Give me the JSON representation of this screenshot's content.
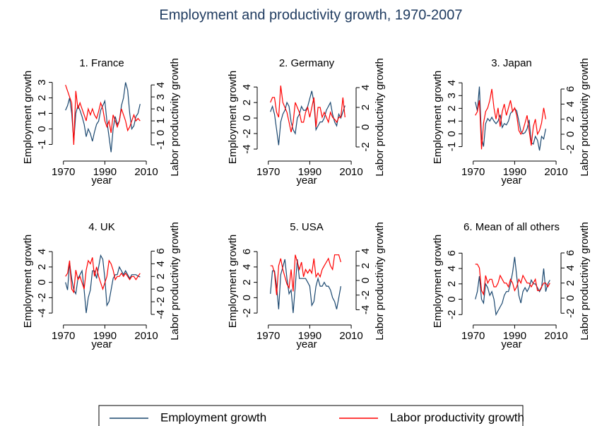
{
  "title": "Employment and productivity growth, 1970-2007",
  "chart_data": [
    {
      "type": "line",
      "title": "1. France",
      "xlabel": "year",
      "ylabel": "Employment growth",
      "y2label": "Labor productivity growth",
      "x": [
        1971,
        1972,
        1973,
        1974,
        1975,
        1976,
        1977,
        1978,
        1979,
        1980,
        1981,
        1982,
        1983,
        1984,
        1985,
        1986,
        1987,
        1988,
        1989,
        1990,
        1991,
        1992,
        1993,
        1994,
        1995,
        1996,
        1997,
        1998,
        1999,
        2000,
        2001,
        2002,
        2003,
        2004,
        2005,
        2006,
        2007
      ],
      "xlim": [
        1966,
        2011
      ],
      "xticks": [
        1970,
        1990,
        2010
      ],
      "ylim": [
        -1.8,
        3.3
      ],
      "yticks": [
        -1,
        0,
        1,
        2,
        3
      ],
      "y2lim": [
        -2.0,
        4.6
      ],
      "y2ticks": [
        -1,
        0,
        1,
        2,
        3,
        4
      ],
      "series": [
        {
          "name": "Employment growth",
          "color": "#1a476f",
          "values": [
            1.2,
            1.5,
            2.0,
            1.0,
            -0.8,
            1.0,
            1.5,
            1.2,
            0.8,
            0.3,
            -0.5,
            0.0,
            -0.3,
            -0.8,
            -0.2,
            0.3,
            0.5,
            1.2,
            1.5,
            1.8,
            0.5,
            -0.5,
            -1.5,
            0.0,
            0.8,
            0.3,
            0.5,
            1.5,
            2.0,
            3.0,
            2.5,
            1.0,
            0.0,
            0.2,
            0.8,
            1.0,
            1.6
          ]
        },
        {
          "name": "Labor productivity growth",
          "color": "#ff0000",
          "axis": "y2",
          "values": [
            4.0,
            3.5,
            3.0,
            2.5,
            -1.0,
            3.5,
            2.0,
            2.5,
            2.0,
            1.5,
            1.0,
            2.0,
            1.5,
            2.0,
            1.5,
            1.2,
            1.8,
            2.5,
            2.0,
            1.0,
            0.5,
            1.0,
            0.0,
            1.5,
            1.0,
            0.5,
            1.0,
            2.0,
            1.5,
            1.0,
            0.2,
            0.5,
            1.0,
            1.5,
            1.0,
            1.2,
            1.0
          ]
        }
      ]
    },
    {
      "type": "line",
      "title": "2. Germany",
      "xlabel": "year",
      "ylabel": "Employment growth",
      "y2label": "Labor productivity growth",
      "x": [
        1971,
        1972,
        1973,
        1974,
        1975,
        1976,
        1977,
        1978,
        1979,
        1980,
        1981,
        1982,
        1983,
        1984,
        1985,
        1986,
        1987,
        1988,
        1989,
        1990,
        1991,
        1992,
        1993,
        1994,
        1995,
        1996,
        1997,
        1998,
        1999,
        2000,
        2001,
        2002,
        2003,
        2004,
        2005,
        2006,
        2007
      ],
      "xlim": [
        1966,
        2011
      ],
      "xticks": [
        1970,
        1990,
        2010
      ],
      "ylim": [
        -5,
        5.2
      ],
      "yticks": [
        -4,
        -2,
        0,
        2,
        4
      ],
      "y2lim": [
        -3,
        5
      ],
      "y2ticks": [
        -2,
        0,
        2,
        4
      ],
      "series": [
        {
          "name": "Employment growth",
          "color": "#1a476f",
          "values": [
            0.8,
            1.5,
            0.5,
            -1.5,
            -3.5,
            -0.5,
            0.5,
            1.0,
            2.0,
            1.5,
            -0.5,
            -1.5,
            -2.0,
            0.0,
            0.5,
            1.5,
            1.0,
            1.0,
            1.5,
            2.5,
            3.5,
            2.0,
            -1.5,
            -1.0,
            -0.5,
            -0.5,
            0.0,
            1.0,
            1.5,
            2.0,
            0.5,
            -0.5,
            -1.0,
            0.5,
            0.0,
            0.8,
            1.6
          ]
        },
        {
          "name": "Labor productivity growth",
          "color": "#ff0000",
          "axis": "y2",
          "values": [
            2.5,
            3.0,
            3.0,
            1.5,
            1.0,
            4.2,
            2.5,
            2.0,
            1.5,
            0.5,
            -0.5,
            0.5,
            2.5,
            2.0,
            1.5,
            0.5,
            0.5,
            1.5,
            2.0,
            1.0,
            2.0,
            3.0,
            0.0,
            2.0,
            2.0,
            1.0,
            1.5,
            1.0,
            0.5,
            1.5,
            1.0,
            0.8,
            0.5,
            1.0,
            1.0,
            3.0,
            1.0
          ]
        }
      ]
    },
    {
      "type": "line",
      "title": "3. Japan",
      "xlabel": "year",
      "ylabel": "Employment growth",
      "y2label": "Labor productivity growth",
      "x": [
        1971,
        1972,
        1973,
        1974,
        1975,
        1976,
        1977,
        1978,
        1979,
        1980,
        1981,
        1982,
        1983,
        1984,
        1985,
        1986,
        1987,
        1988,
        1989,
        1990,
        1991,
        1992,
        1993,
        1994,
        1995,
        1996,
        1997,
        1998,
        1999,
        2000,
        2001,
        2002,
        2003,
        2004,
        2005,
        2006,
        2007
      ],
      "xlim": [
        1966,
        2011
      ],
      "xticks": [
        1970,
        1990,
        2010
      ],
      "ylim": [
        -1.8,
        4.4
      ],
      "yticks": [
        -1,
        0,
        1,
        2,
        3,
        4
      ],
      "y2lim": [
        -3,
        7.5
      ],
      "y2ticks": [
        -2,
        0,
        2,
        4,
        6
      ],
      "series": [
        {
          "name": "Employment growth",
          "color": "#1a476f",
          "values": [
            2.5,
            1.8,
            3.7,
            -0.3,
            -1.0,
            0.8,
            1.2,
            1.0,
            1.3,
            1.0,
            0.8,
            1.0,
            1.5,
            0.5,
            0.8,
            0.7,
            1.0,
            1.6,
            1.8,
            2.0,
            1.8,
            1.0,
            0.2,
            0.0,
            0.1,
            0.4,
            1.1,
            -0.7,
            -0.8,
            -0.2,
            -0.5,
            -1.3,
            -0.2,
            -0.4,
            0.4,
            null,
            null
          ]
        },
        {
          "name": "Labor productivity growth",
          "color": "#ff0000",
          "axis": "y2",
          "values": [
            2.5,
            3.0,
            4.5,
            -2.0,
            1.5,
            3.0,
            3.5,
            4.5,
            6.0,
            3.5,
            2.0,
            3.5,
            1.0,
            3.0,
            4.0,
            2.5,
            3.5,
            4.5,
            3.0,
            3.5,
            2.5,
            0.5,
            0.0,
            0.5,
            1.5,
            2.5,
            0.5,
            -1.5,
            1.0,
            2.0,
            0.0,
            0.5,
            1.5,
            3.5,
            2.0,
            null,
            null
          ]
        }
      ]
    },
    {
      "type": "line",
      "title": "4. UK",
      "xlabel": "year",
      "ylabel": "Employment growth",
      "y2label": "Labor productivity growth",
      "x": [
        1971,
        1972,
        1973,
        1974,
        1975,
        1976,
        1977,
        1978,
        1979,
        1980,
        1981,
        1982,
        1983,
        1984,
        1985,
        1986,
        1987,
        1988,
        1989,
        1990,
        1991,
        1992,
        1993,
        1994,
        1995,
        1996,
        1997,
        1998,
        1999,
        2000,
        2001,
        2002,
        2003,
        2004,
        2005,
        2006,
        2007
      ],
      "xlim": [
        1966,
        2011
      ],
      "xticks": [
        1970,
        1990,
        2010
      ],
      "ylim": [
        -5,
        5.3
      ],
      "yticks": [
        -4,
        -2,
        0,
        2,
        4
      ],
      "y2lim": [
        -5,
        7.5
      ],
      "y2ticks": [
        -4,
        -2,
        0,
        2,
        4,
        6
      ],
      "series": [
        {
          "name": "Employment growth",
          "color": "#1a476f",
          "values": [
            0.0,
            -1.0,
            2.5,
            0.5,
            -1.0,
            -1.5,
            0.5,
            1.0,
            1.5,
            -1.0,
            -4.0,
            -2.0,
            -1.0,
            1.5,
            1.5,
            0.5,
            2.0,
            3.5,
            3.0,
            0.5,
            -3.0,
            -2.5,
            -1.0,
            0.5,
            1.0,
            1.0,
            2.0,
            1.5,
            1.0,
            1.5,
            1.0,
            0.5,
            1.0,
            1.0,
            1.0,
            0.8,
            0.7
          ]
        },
        {
          "name": "Labor productivity growth",
          "color": "#ff0000",
          "axis": "y2",
          "values": [
            2.0,
            2.5,
            4.5,
            0.0,
            -0.5,
            3.0,
            1.5,
            2.0,
            1.0,
            0.0,
            3.0,
            4.5,
            4.0,
            5.0,
            2.0,
            3.5,
            2.0,
            1.0,
            0.0,
            1.0,
            2.0,
            4.5,
            4.0,
            3.0,
            1.5,
            2.0,
            2.0,
            2.5,
            2.0,
            2.5,
            2.0,
            1.5,
            2.0,
            2.0,
            1.5,
            2.0,
            2.5
          ]
        }
      ]
    },
    {
      "type": "line",
      "title": "5. USA",
      "xlabel": "year",
      "ylabel": "Employment growth",
      "y2label": "Labor productivity growth",
      "x": [
        1971,
        1972,
        1973,
        1974,
        1975,
        1976,
        1977,
        1978,
        1979,
        1980,
        1981,
        1982,
        1983,
        1984,
        1985,
        1986,
        1987,
        1988,
        1989,
        1990,
        1991,
        1992,
        1993,
        1994,
        1995,
        1996,
        1997,
        1998,
        1999,
        2000,
        2001,
        2002,
        2003,
        2004,
        2005,
        2006,
        2007
      ],
      "xlim": [
        1966,
        2011
      ],
      "xticks": [
        1970,
        1990,
        2010
      ],
      "ylim": [
        -3,
        7.3
      ],
      "yticks": [
        -2,
        0,
        2,
        4,
        6
      ],
      "y2lim": [
        -5.5,
        5.3
      ],
      "y2ticks": [
        -4,
        -2,
        0,
        2,
        4
      ],
      "series": [
        {
          "name": "Employment growth",
          "color": "#1a476f",
          "values": [
            0.5,
            3.5,
            3.5,
            1.5,
            -1.5,
            3.0,
            4.0,
            5.0,
            2.5,
            0.5,
            1.0,
            -2.0,
            1.5,
            5.0,
            2.5,
            2.5,
            2.5,
            2.5,
            2.0,
            1.5,
            -1.0,
            -0.5,
            1.5,
            2.5,
            1.5,
            1.5,
            2.0,
            1.5,
            1.5,
            1.0,
            0.0,
            -0.5,
            -1.5,
            0.0,
            1.5,
            null,
            null
          ]
        },
        {
          "name": "Labor productivity growth",
          "color": "#ff0000",
          "axis": "y2",
          "values": [
            2.0,
            2.0,
            1.0,
            -2.0,
            2.0,
            3.0,
            1.5,
            0.5,
            -0.5,
            -1.0,
            1.5,
            -1.5,
            3.5,
            2.5,
            1.5,
            2.5,
            0.5,
            1.5,
            1.0,
            1.5,
            1.0,
            3.0,
            0.5,
            1.0,
            0.5,
            1.5,
            2.0,
            2.5,
            3.0,
            2.0,
            1.5,
            3.5,
            3.5,
            3.5,
            2.5,
            null,
            null
          ]
        }
      ]
    },
    {
      "type": "line",
      "title": "6. Mean of all others",
      "xlabel": "year",
      "ylabel": "Employment growth",
      "y2label": "Labor productivity growth",
      "x": [
        1971,
        1972,
        1973,
        1974,
        1975,
        1976,
        1977,
        1978,
        1979,
        1980,
        1981,
        1982,
        1983,
        1984,
        1985,
        1986,
        1987,
        1988,
        1989,
        1990,
        1991,
        1992,
        1993,
        1994,
        1995,
        1996,
        1997,
        1998,
        1999,
        2000,
        2001,
        2002,
        2003,
        2004,
        2005,
        2006,
        2007
      ],
      "xlim": [
        1966,
        2011
      ],
      "xticks": [
        1970,
        1990,
        2010
      ],
      "ylim": [
        -2.8,
        7.5
      ],
      "yticks": [
        -2,
        0,
        2,
        4,
        6
      ],
      "y2lim": [
        -3,
        7.5
      ],
      "y2ticks": [
        -2,
        0,
        2,
        4,
        6
      ],
      "series": [
        {
          "name": "Employment growth",
          "color": "#1a476f",
          "values": [
            0.0,
            1.0,
            3.0,
            0.0,
            -0.5,
            2.0,
            1.5,
            0.5,
            1.0,
            0.0,
            -2.0,
            -1.5,
            -1.0,
            -0.5,
            0.5,
            1.0,
            1.0,
            2.0,
            3.5,
            5.5,
            3.0,
            0.5,
            -0.5,
            1.0,
            1.5,
            1.0,
            1.5,
            2.5,
            2.0,
            2.0,
            1.5,
            1.0,
            1.5,
            4.0,
            1.0,
            2.0,
            2.5
          ]
        },
        {
          "name": "Labor productivity growth",
          "color": "#ff0000",
          "axis": "y2",
          "values": [
            4.5,
            4.5,
            4.0,
            1.0,
            0.5,
            3.0,
            2.0,
            2.5,
            2.5,
            1.5,
            1.5,
            2.0,
            3.0,
            2.5,
            2.0,
            2.0,
            1.5,
            2.5,
            2.0,
            1.0,
            1.5,
            2.5,
            2.0,
            3.0,
            2.5,
            2.0,
            2.0,
            1.5,
            2.0,
            2.5,
            1.0,
            1.0,
            1.5,
            2.0,
            2.0,
            1.5,
            2.0
          ]
        }
      ]
    }
  ]
}
